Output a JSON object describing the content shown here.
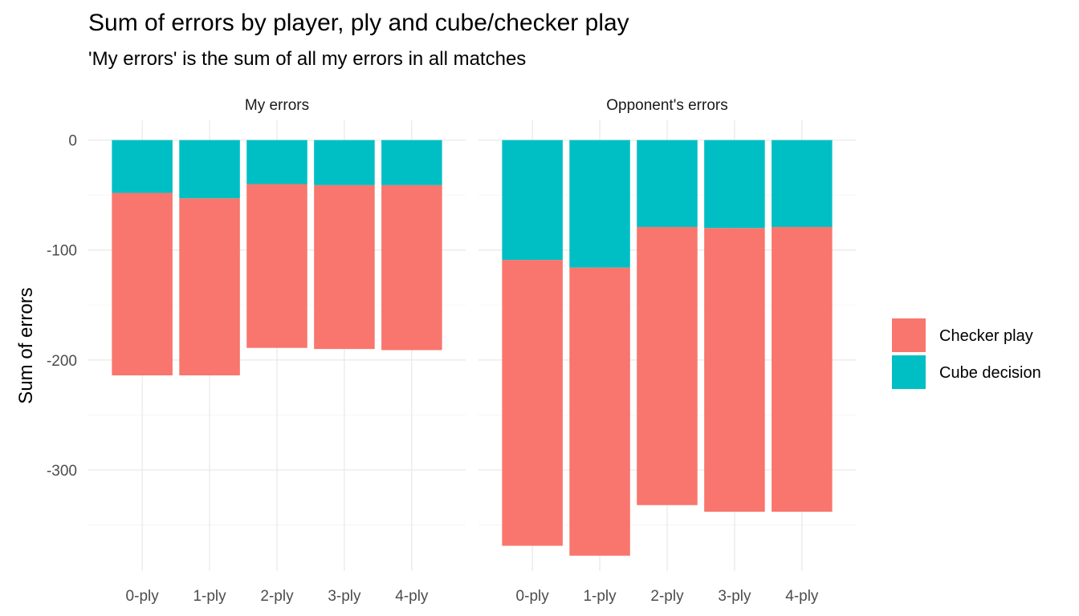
{
  "chart_data": {
    "type": "bar",
    "stacked": true,
    "title": "Sum of errors by player, ply and cube/checker play",
    "subtitle": "'My errors' is the sum of all my errors in all matches",
    "ylabel": "Sum of errors",
    "xlabel": "",
    "ylim": [
      -392,
      18
    ],
    "yticks": [
      0,
      -100,
      -200,
      -300
    ],
    "grid": true,
    "legend_position": "right",
    "categories": [
      "0-ply",
      "1-ply",
      "2-ply",
      "3-ply",
      "4-ply"
    ],
    "series_names": [
      "Checker play",
      "Cube decision"
    ],
    "colors": {
      "Checker play": "#F8766D",
      "Cube decision": "#00BFC4"
    },
    "panels": [
      {
        "name": "My errors",
        "cube_decision": [
          -48,
          -53,
          -40,
          -41,
          -41
        ],
        "checker_play": [
          -166,
          -161,
          -149,
          -149,
          -150
        ]
      },
      {
        "name": "Opponent's errors",
        "cube_decision": [
          -109,
          -116,
          -79,
          -80,
          -79
        ],
        "checker_play": [
          -260,
          -262,
          -253,
          -258,
          -259
        ]
      }
    ]
  }
}
